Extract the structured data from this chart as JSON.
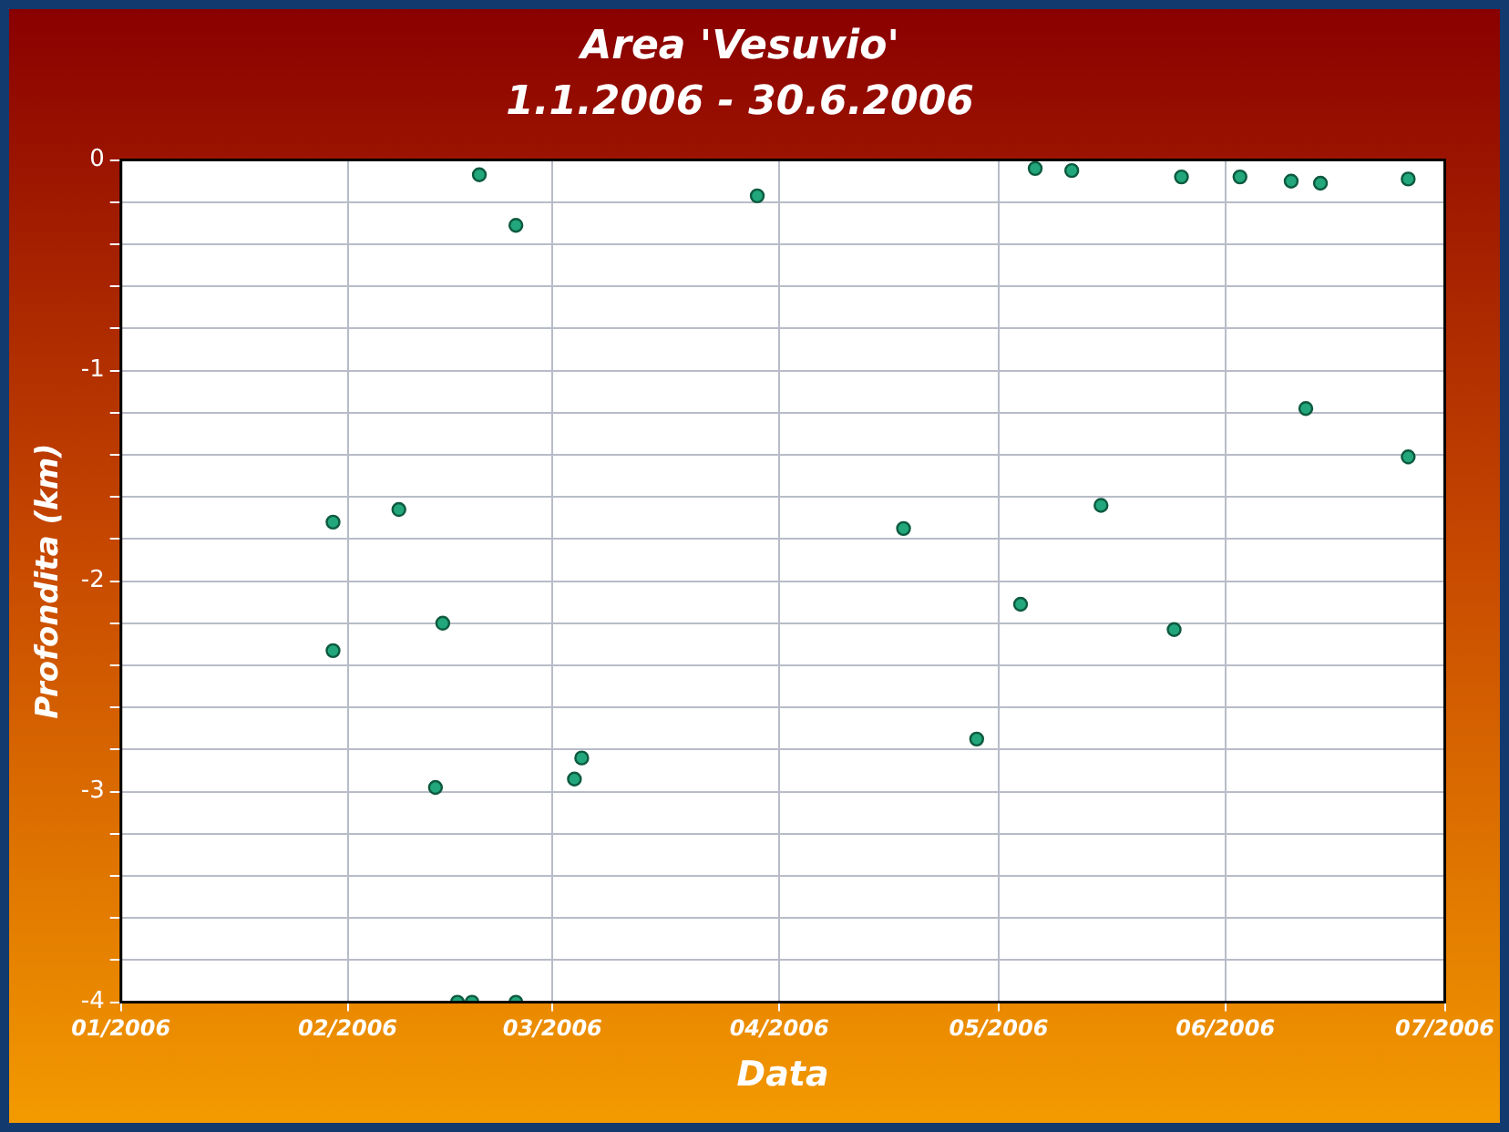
{
  "chart_data": {
    "type": "scatter",
    "title": "Area 'Vesuvio'",
    "subtitle": "1.1.2006 - 30.6.2006",
    "xlabel": "Data",
    "ylabel": "Profondita (km)",
    "x": [
      "2006-01-30",
      "2006-01-30",
      "2006-02-08",
      "2006-02-14",
      "2006-02-13",
      "2006-02-16",
      "2006-02-18",
      "2006-02-19",
      "2006-02-24",
      "2006-02-24",
      "2006-03-04",
      "2006-03-05",
      "2006-03-29",
      "2006-04-18",
      "2006-04-28",
      "2006-05-04",
      "2006-05-06",
      "2006-05-11",
      "2006-05-15",
      "2006-05-25",
      "2006-05-26",
      "2006-06-03",
      "2006-06-10",
      "2006-06-12",
      "2006-06-14",
      "2006-06-26",
      "2006-06-26"
    ],
    "series": [
      {
        "color": "#22a67c",
        "values": [
          -1.72,
          -2.33,
          -1.66,
          -2.2,
          -2.98,
          -4,
          -4,
          -0.07,
          -0.31,
          -4,
          -2.94,
          -2.84,
          -0.17,
          -1.75,
          -2.75,
          -2.11,
          -0.04,
          -0.05,
          -1.64,
          -2.23,
          -0.08,
          -0.08,
          -0.1,
          -1.18,
          -0.11,
          -0.09,
          -1.41
        ]
      }
    ],
    "xlim": [
      "2006-01-01",
      "2006-07-01"
    ],
    "xticks": [
      {
        "value": "2006-01-01",
        "label": "01/2006"
      },
      {
        "value": "2006-02-01",
        "label": "02/2006"
      },
      {
        "value": "2006-03-01",
        "label": "03/2006"
      },
      {
        "value": "2006-04-01",
        "label": "04/2006"
      },
      {
        "value": "2006-05-01",
        "label": "05/2006"
      },
      {
        "value": "2006-06-01",
        "label": "06/2006"
      },
      {
        "value": "2006-07-01",
        "label": "07/2006"
      }
    ],
    "ylim": [
      -4,
      0
    ],
    "yticks": [
      -4,
      {
        "value": -3.8,
        "label": null
      },
      {
        "value": -3.6,
        "label": null
      },
      {
        "value": -3.4,
        "label": null
      },
      {
        "value": -3.2,
        "label": null
      },
      -3,
      {
        "value": -2.8,
        "label": null
      },
      {
        "value": -2.6,
        "label": null
      },
      {
        "value": -2.4,
        "label": null
      },
      {
        "value": -2.2,
        "label": null
      },
      -2,
      {
        "value": -1.8,
        "label": null
      },
      {
        "value": -1.6,
        "label": null
      },
      {
        "value": -1.4,
        "label": null
      },
      {
        "value": -1.2,
        "label": null
      },
      -1,
      {
        "value": -0.8,
        "label": null
      },
      {
        "value": -0.6,
        "label": null
      },
      {
        "value": -0.4,
        "label": null
      },
      {
        "value": -0.2,
        "label": null
      },
      0
    ],
    "grid": true,
    "legend": false,
    "marker": "circle"
  }
}
